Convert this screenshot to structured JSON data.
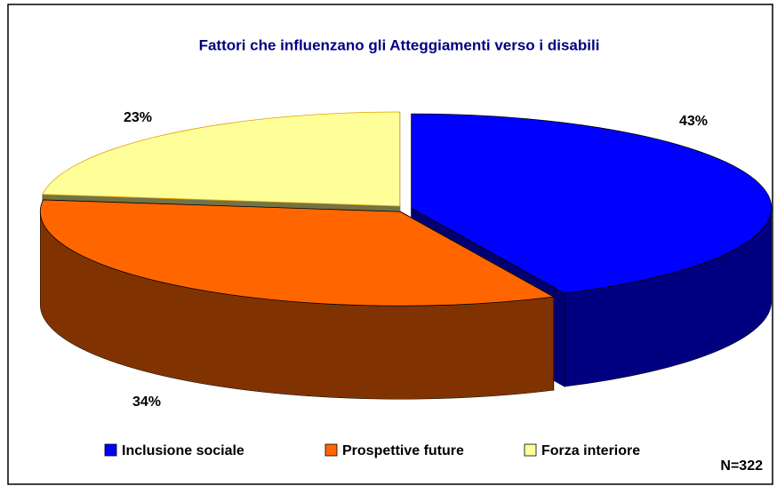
{
  "chart_data": {
    "type": "pie",
    "title": "Fattori che influenzano gli Atteggiamenti verso i disabili",
    "categories": [
      "Inclusione sociale",
      "Prospettive future",
      "Forza interiore"
    ],
    "values": [
      43,
      34,
      23
    ],
    "value_labels": [
      "43%",
      "34%",
      "23%"
    ],
    "colors": [
      "#0000ff",
      "#ff6600",
      "#ffff99"
    ],
    "annotation": "N=322",
    "legend": "bottom"
  }
}
